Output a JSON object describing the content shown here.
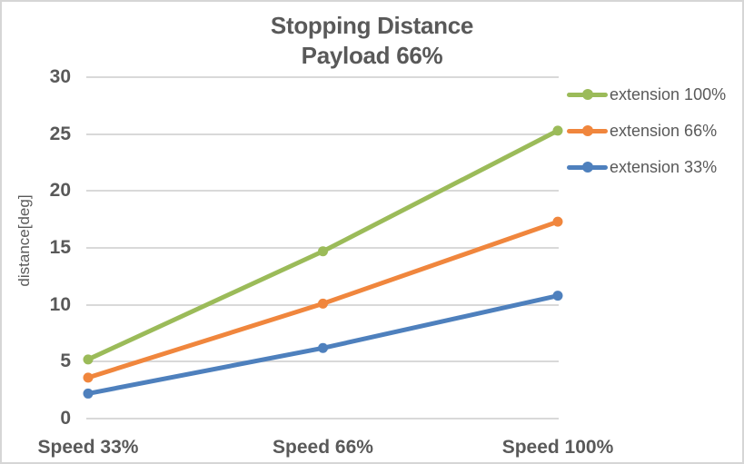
{
  "chart": {
    "title_line1": "Stopping Distance",
    "title_line2": "Payload 66%",
    "text_color": "#595959",
    "gridline_color": "#d9d9d9",
    "background_color": "#ffffff"
  },
  "chart_data": {
    "type": "line",
    "title": "Stopping Distance",
    "subtitle": "Payload 66%",
    "xlabel": "",
    "ylabel": "distance[deg]",
    "categories": [
      "Speed 33%",
      "Speed 66%",
      "Speed 100%"
    ],
    "series": [
      {
        "name": "extension 100%",
        "color": "#9bbb59",
        "values": [
          5.2,
          14.7,
          25.3
        ]
      },
      {
        "name": "extension 66%",
        "color": "#f0863d",
        "values": [
          3.6,
          10.1,
          17.3
        ]
      },
      {
        "name": "extension 33%",
        "color": "#4e80bd",
        "values": [
          2.2,
          6.2,
          10.8
        ]
      }
    ],
    "ylim": [
      0,
      30
    ],
    "yticks": [
      0,
      5,
      10,
      15,
      20,
      25,
      30
    ],
    "grid": true,
    "legend_position": "right",
    "marker": "circle",
    "line_width": 5
  }
}
